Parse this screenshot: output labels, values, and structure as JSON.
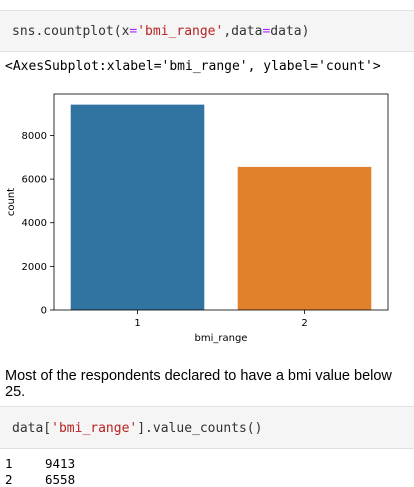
{
  "cells": [
    {
      "code_tokens": [
        {
          "text": "sns.countplot(",
          "kind": "fn"
        },
        {
          "text": "x",
          "kind": "kw"
        },
        {
          "text": "=",
          "kind": "op"
        },
        {
          "text": "'bmi_range'",
          "kind": "str"
        },
        {
          "text": ",data",
          "kind": "kw"
        },
        {
          "text": "=",
          "kind": "op"
        },
        {
          "text": "data)",
          "kind": "fn"
        }
      ],
      "output_repr": "<AxesSubplot:xlabel='bmi_range', ylabel='count'>"
    },
    {
      "code_tokens": [
        {
          "text": "data[",
          "kind": "fn"
        },
        {
          "text": "'bmi_range'",
          "kind": "str"
        },
        {
          "text": "].value_counts()",
          "kind": "fn"
        }
      ]
    }
  ],
  "markdown": {
    "text": "Most of the respondents declared to have a bmi value below 25."
  },
  "value_counts": [
    {
      "index": "1",
      "count": "9413"
    },
    {
      "index": "2",
      "count": "6558"
    }
  ],
  "chart_data": {
    "type": "bar",
    "categories": [
      "1",
      "2"
    ],
    "values": [
      9413,
      6558
    ],
    "colors": [
      "#3274a1",
      "#e1812c"
    ],
    "xlabel": "bmi_range",
    "ylabel": "count",
    "ylim": [
      0,
      9900
    ],
    "yticks": [
      0,
      2000,
      4000,
      6000,
      8000
    ],
    "grid": false
  }
}
